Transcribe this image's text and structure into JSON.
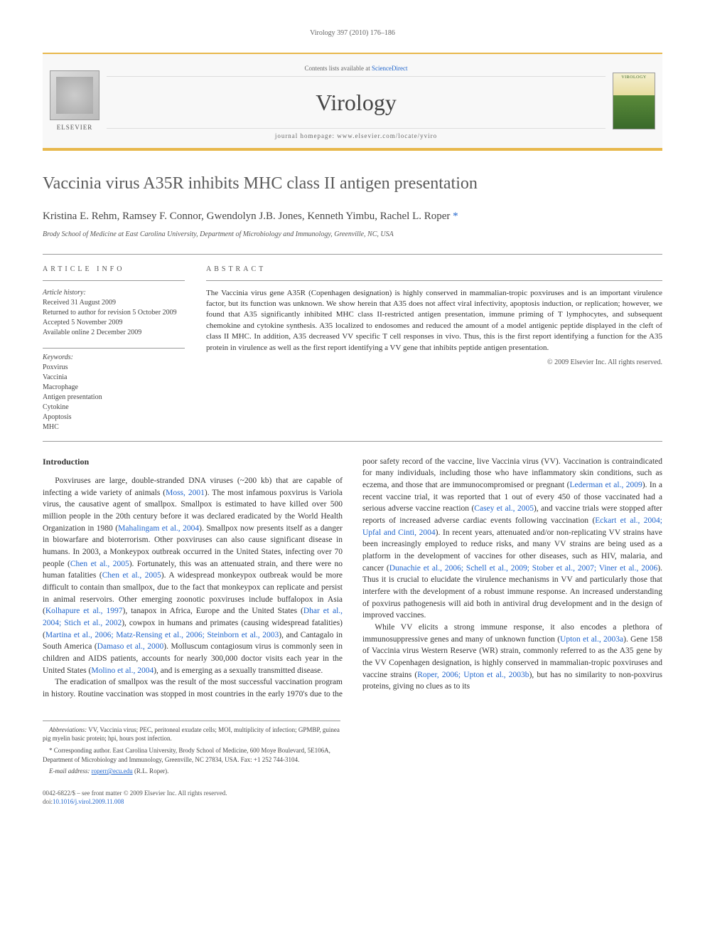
{
  "running_head": "Virology 397 (2010) 176–186",
  "masthead": {
    "contents_line_prefix": "Contents lists available at ",
    "contents_link": "ScienceDirect",
    "journal": "Virology",
    "homepage_prefix": "journal homepage: ",
    "homepage": "www.elsevier.com/locate/yviro",
    "publisher": "ELSEVIER",
    "cover_label": "VIROLOGY"
  },
  "title": "Vaccinia virus A35R inhibits MHC class II antigen presentation",
  "authors": "Kristina E. Rehm, Ramsey F. Connor, Gwendolyn J.B. Jones, Kenneth Yimbu, Rachel L. Roper ",
  "corr_symbol": "*",
  "affiliation": "Brody School of Medicine at East Carolina University, Department of Microbiology and Immunology, Greenville, NC, USA",
  "info": {
    "label": "ARTICLE INFO",
    "history_hdr": "Article history:",
    "received": "Received 31 August 2009",
    "returned": "Returned to author for revision 5 October 2009",
    "accepted": "Accepted 5 November 2009",
    "online": "Available online 2 December 2009",
    "kw_hdr": "Keywords:",
    "kw": [
      "Poxvirus",
      "Vaccinia",
      "Macrophage",
      "Antigen presentation",
      "Cytokine",
      "Apoptosis",
      "MHC"
    ]
  },
  "abstract": {
    "label": "ABSTRACT",
    "text": "The Vaccinia virus gene A35R (Copenhagen designation) is highly conserved in mammalian-tropic poxviruses and is an important virulence factor, but its function was unknown. We show herein that A35 does not affect viral infectivity, apoptosis induction, or replication; however, we found that A35 significantly inhibited MHC class II-restricted antigen presentation, immune priming of T lymphocytes, and subsequent chemokine and cytokine synthesis. A35 localized to endosomes and reduced the amount of a model antigenic peptide displayed in the cleft of class II MHC. In addition, A35 decreased VV specific T cell responses in vivo. Thus, this is the first report identifying a function for the A35 protein in virulence as well as the first report identifying a VV gene that inhibits peptide antigen presentation.",
    "copyright": "© 2009 Elsevier Inc. All rights reserved."
  },
  "body": {
    "heading": "Introduction",
    "p1a": "Poxviruses are large, double-stranded DNA viruses (~200 kb) that are capable of infecting a wide variety of animals (",
    "c1": "Moss, 2001",
    "p1b": "). The most infamous poxvirus is Variola virus, the causative agent of smallpox. Smallpox is estimated to have killed over 500 million people in the 20th century before it was declared eradicated by the World Health Organization in 1980 (",
    "c2": "Mahalingam et al., 2004",
    "p1c": "). Smallpox now presents itself as a danger in biowarfare and bioterrorism. Other poxviruses can also cause significant disease in humans. In 2003, a Monkeypox outbreak occurred in the United States, infecting over 70 people (",
    "c3": "Chen et al., 2005",
    "p1d": "). Fortunately, this was an attenuated strain, and there were no human fatalities (",
    "c4": "Chen et al., 2005",
    "p1e": "). A widespread monkeypox outbreak would be more difficult to contain than smallpox, due to the fact that monkeypox can replicate and persist in animal reservoirs. Other emerging zoonotic poxviruses include buffalopox in Asia (",
    "c5": "Kolhapure et al., 1997",
    "p1f": "), tanapox in Africa, Europe and the United States (",
    "c6": "Dhar et al., 2004; Stich et al., 2002",
    "p1g": "), cowpox in humans and primates (causing widespread fatalities) (",
    "c7": "Martina et al., 2006; Matz-Rensing et al., 2006; Steinborn et al., 2003",
    "p1h": "), and Cantagalo in South America (",
    "c8": "Damaso et al., 2000",
    "p1i": "). Molluscum contagiosum virus is commonly seen in children and AIDS patients, accounts for nearly 300,000 doctor visits each year in the United States (",
    "c9": "Molino et al., 2004",
    "p1j": "), and is emerging as a sexually transmitted disease.",
    "p2a": "The eradication of smallpox was the result of the most successful vaccination program in history. Routine vaccination was stopped in most countries in the early 1970's due to the poor safety record of the vaccine, live Vaccinia virus (VV). Vaccination is contraindicated for many individuals, including those who have inflammatory skin conditions, such as eczema, and those that are immunocompromised or pregnant (",
    "c10": "Lederman et al., 2009",
    "p2b": "). In a recent vaccine trial, it was reported that 1 out of every 450 of those vaccinated had a serious adverse vaccine reaction (",
    "c11": "Casey et al., 2005",
    "p2c": "), and vaccine trials were stopped after reports of increased adverse cardiac events following vaccination (",
    "c12": "Eckart et al., 2004; Upfal and Cinti, 2004",
    "p2d": "). In recent years, attenuated and/or non-replicating VV strains have been increasingly employed to reduce risks, and many VV strains are being used as a platform in the development of vaccines for other diseases, such as HIV, malaria, and cancer (",
    "c13": "Dunachie et al., 2006; Schell et al., 2009; Stober et al., 2007; Viner et al., 2006",
    "p2e": "). Thus it is crucial to elucidate the virulence mechanisms in VV and particularly those that interfere with the development of a robust immune response. An increased understanding of poxvirus pathogenesis will aid both in antiviral drug development and in the design of improved vaccines.",
    "p3a": "While VV elicits a strong immune response, it also encodes a plethora of immunosuppressive genes and many of unknown function (",
    "c14": "Upton et al., 2003a",
    "p3b": "). Gene 158 of Vaccinia virus Western Reserve (WR) strain, commonly referred to as the A35 gene by the VV Copenhagen designation, is highly conserved in mammalian-tropic poxviruses and vaccine strains (",
    "c15": "Roper, 2006; Upton et al., 2003b",
    "p3c": "), but has no similarity to non-poxvirus proteins, giving no clues as to its"
  },
  "footnotes": {
    "abbrev_hdr": "Abbreviations:",
    "abbrev": " VV, Vaccinia virus; PEC, peritoneal exudate cells; MOI, multiplicity of infection; GPMBP, guinea pig myelin basic protein; hpi, hours post infection.",
    "corr_hdr": "* Corresponding author.",
    "corr": " East Carolina University, Brody School of Medicine, 600 Moye Boulevard, 5E106A, Department of Microbiology and Immunology, Greenville, NC 27834, USA. Fax: +1 252 744-3104.",
    "email_hdr": "E-mail address:",
    "email": "roperr@ecu.edu",
    "email_suffix": " (R.L. Roper)."
  },
  "footer": {
    "line1": "0042-6822/$ – see front matter © 2009 Elsevier Inc. All rights reserved.",
    "doi_prefix": "doi:",
    "doi": "10.1016/j.virol.2009.11.008"
  },
  "colors": {
    "accent": "#e8b84c",
    "link": "#2266cc",
    "text": "#333333",
    "muted": "#666666"
  }
}
